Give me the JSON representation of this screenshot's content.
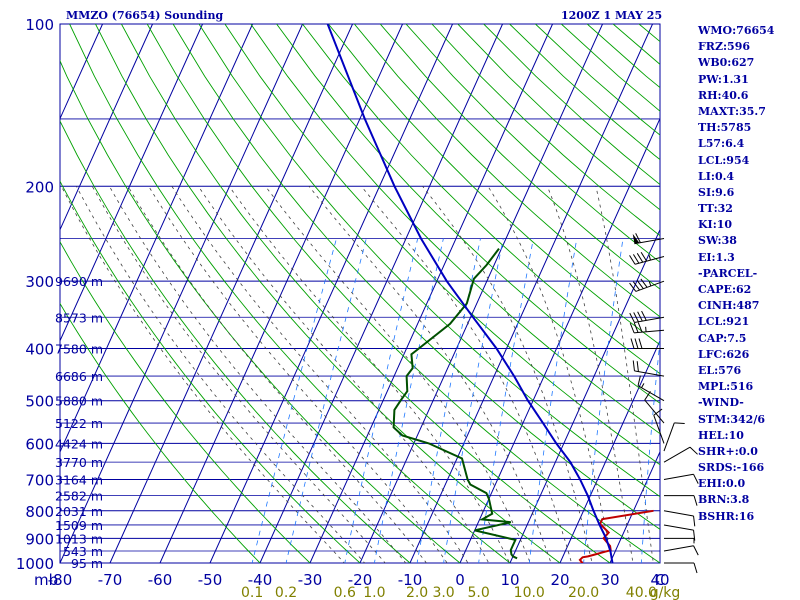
{
  "header": {
    "station": "MMZO (76654) Sounding",
    "time": "1200Z  1 MAY 25"
  },
  "colors": {
    "frame": "#0000a0",
    "isotherm": "#0000a0",
    "dry_adiabat": "#00a000",
    "moist_adiabat": "#404040",
    "mixing_ratio": "#1e78ff",
    "temperature": "#c00000",
    "dewpoint": "#005000",
    "parcel": "#0000c0",
    "wind": "#000000",
    "mixing_label": "#808000"
  },
  "side_panel": [
    "WMO:76654",
    "FRZ:596",
    "WB0:627",
    "PW:1.31",
    "RH:40.6",
    "MAXT:35.7",
    "TH:5785",
    "L57:6.4",
    "LCL:954",
    "LI:0.4",
    "SI:9.6",
    "TT:32",
    "KI:10",
    "SW:38",
    "EI:1.3",
    "-PARCEL-",
    "CAPE:62",
    "CINH:487",
    "LCL:921",
    "CAP:7.5",
    "LFC:626",
    "EL:576",
    "MPL:516",
    "-WIND-",
    "STM:342/6",
    "HEL:10",
    "SHR+:0.0",
    "SRDS:-166",
    "EHI:0.0",
    "BRN:3.8",
    "BSHR:16"
  ],
  "chart_data": {
    "type": "skew-t",
    "xlabel": "C",
    "ylabel": "mb",
    "pressure_range": [
      100,
      1000
    ],
    "temperature_range": [
      -80,
      40
    ],
    "grid": true,
    "pressure_ticks": [
      "100",
      "200",
      "300",
      "400",
      "500",
      "600",
      "700",
      "800",
      "900",
      "1000"
    ],
    "temperature_ticks": [
      "-80",
      "-70",
      "-60",
      "-50",
      "-40",
      "-30",
      "-20",
      "-10",
      "0",
      "10",
      "20",
      "30",
      "40"
    ],
    "mixing_ratio_labels": [
      "0.1",
      "0.2",
      "0.6",
      "1.0",
      "2.0",
      "3.0",
      "5.0",
      "10.0",
      "20.0",
      "40.0",
      "g/kg"
    ],
    "mixing_ratio_values": [
      0.1,
      0.2,
      0.6,
      1.0,
      2.0,
      3.0,
      5.0,
      10.0,
      20.0,
      40.0
    ],
    "height_labels": [
      {
        "p": 300,
        "text": "9690 m"
      },
      {
        "p": 350,
        "text": "8573 m"
      },
      {
        "p": 400,
        "text": "7580 m"
      },
      {
        "p": 450,
        "text": "6686 m"
      },
      {
        "p": 500,
        "text": "5880 m"
      },
      {
        "p": 550,
        "text": "5122 m"
      },
      {
        "p": 600,
        "text": "4424 m"
      },
      {
        "p": 650,
        "text": "3770 m"
      },
      {
        "p": 700,
        "text": "3164 m"
      },
      {
        "p": 750,
        "text": "2582 m"
      },
      {
        "p": 800,
        "text": "2031 m"
      },
      {
        "p": 850,
        "text": "1509 m"
      },
      {
        "p": 900,
        "text": "1013 m"
      },
      {
        "p": 950,
        "text": "543 m"
      },
      {
        "p": 1000,
        "text": "95 m"
      }
    ],
    "series": [
      {
        "name": "temperature",
        "points": [
          [
            800,
            34
          ],
          [
            829,
            24.5
          ],
          [
            846,
            24.5
          ],
          [
            878,
            27
          ],
          [
            900,
            26.5
          ],
          [
            930,
            28.5
          ],
          [
            947,
            29
          ],
          [
            953,
            28
          ],
          [
            966,
            26
          ],
          [
            972,
            25
          ],
          [
            976,
            24
          ],
          [
            987,
            23.7
          ],
          [
            1000,
            24.5
          ],
          [
            1004,
            23.8
          ],
          [
            1010,
            23.9
          ]
        ]
      },
      {
        "name": "dewpoint",
        "points": [
          [
            261,
            -20.5
          ],
          [
            280,
            -21.5
          ],
          [
            297,
            -22.8
          ],
          [
            330,
            -22
          ],
          [
            360,
            -23.5
          ],
          [
            405,
            -28
          ],
          [
            410,
            -28.5
          ],
          [
            435,
            -27
          ],
          [
            450,
            -27.5
          ],
          [
            480,
            -26
          ],
          [
            500,
            -26.5
          ],
          [
            520,
            -26.9
          ],
          [
            560,
            -25.5
          ],
          [
            580,
            -23
          ],
          [
            600,
            -17
          ],
          [
            640,
            -9
          ],
          [
            700,
            -6
          ],
          [
            715,
            -5
          ],
          [
            742,
            -1
          ],
          [
            760,
            0
          ],
          [
            810,
            2
          ],
          [
            830,
            0.5
          ],
          [
            840,
            6.5
          ],
          [
            870,
            0
          ],
          [
            906,
            9
          ],
          [
            930,
            9
          ],
          [
            946,
            9
          ],
          [
            964,
            9.5
          ],
          [
            972,
            10
          ],
          [
            980,
            11
          ]
        ]
      },
      {
        "name": "parcel",
        "points": [
          [
            60,
            -92
          ],
          [
            100,
            -75
          ],
          [
            150,
            -59
          ],
          [
            200,
            -47
          ],
          [
            250,
            -37
          ],
          [
            300,
            -28
          ],
          [
            350,
            -19.5
          ],
          [
            400,
            -12
          ],
          [
            450,
            -6
          ],
          [
            500,
            -1
          ],
          [
            550,
            4
          ],
          [
            600,
            8.5
          ],
          [
            650,
            13
          ],
          [
            700,
            16.5
          ],
          [
            750,
            19.5
          ],
          [
            800,
            22
          ],
          [
            850,
            24.5
          ],
          [
            900,
            27
          ],
          [
            950,
            29
          ],
          [
            1000,
            30.5
          ],
          [
            1010,
            31
          ]
        ]
      }
    ],
    "wind_barbs": [
      {
        "p": 250,
        "dir": 260,
        "speed": 60
      },
      {
        "p": 270,
        "dir": 255,
        "speed": 45
      },
      {
        "p": 300,
        "dir": 250,
        "speed": 45
      },
      {
        "p": 350,
        "dir": 260,
        "speed": 40
      },
      {
        "p": 370,
        "dir": 265,
        "speed": 35
      },
      {
        "p": 400,
        "dir": 270,
        "speed": 30
      },
      {
        "p": 450,
        "dir": 280,
        "speed": 20
      },
      {
        "p": 500,
        "dir": 300,
        "speed": 15
      },
      {
        "p": 550,
        "dir": 320,
        "speed": 10
      },
      {
        "p": 600,
        "dir": 340,
        "speed": 10
      },
      {
        "p": 620,
        "dir": 20,
        "speed": 10
      },
      {
        "p": 650,
        "dir": 60,
        "speed": 10
      },
      {
        "p": 700,
        "dir": 80,
        "speed": 10
      },
      {
        "p": 750,
        "dir": 90,
        "speed": 10
      },
      {
        "p": 800,
        "dir": 100,
        "speed": 10
      },
      {
        "p": 850,
        "dir": 100,
        "speed": 10
      },
      {
        "p": 900,
        "dir": 90,
        "speed": 5
      },
      {
        "p": 950,
        "dir": 80,
        "speed": 10
      },
      {
        "p": 1000,
        "dir": 90,
        "speed": 10
      }
    ]
  }
}
